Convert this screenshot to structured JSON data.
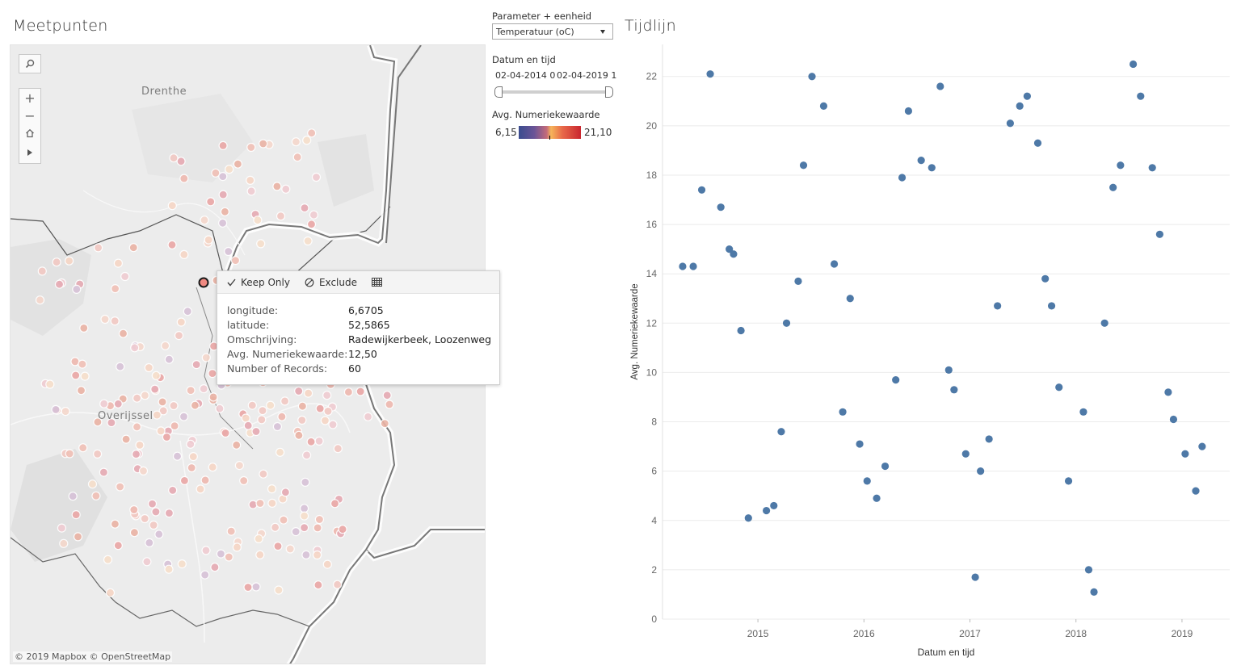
{
  "map": {
    "title": "Meetpunten",
    "labels": {
      "drenthe": "Drenthe",
      "overijssel": "Overijssel"
    },
    "copyright": "© 2019 Mapbox © OpenStreetMap",
    "tooltip": {
      "keep_only": "Keep Only",
      "exclude": "Exclude",
      "rows": [
        {
          "key": "longitude:",
          "value": "6,6705"
        },
        {
          "key": "latitude:",
          "value": "52,5865"
        },
        {
          "key": "Omschrijving:",
          "value": "Radewijkerbeek, Loozenweg"
        },
        {
          "key": "Avg. Numeriekewaarde:",
          "value": "12,50"
        },
        {
          "key": "Number of Records:",
          "value": "60"
        }
      ]
    }
  },
  "controls": {
    "parameter_label": "Parameter + eenheid",
    "parameter_value": "Temperatuur (oC)",
    "date_label": "Datum en tijd",
    "date_start": "02-04-2014 0",
    "date_end": "02-04-2019 1",
    "legend_label": "Avg. Numeriekewaarde",
    "legend_min": "6,15",
    "legend_max": "21,10"
  },
  "chart": {
    "title": "Tijdlijn",
    "color": "#4e79a7"
  },
  "chart_data": {
    "type": "scatter",
    "xlabel": "Datum en tijd",
    "ylabel": "Avg. Numeriekewaarde",
    "xlim": [
      2014.1,
      2019.45
    ],
    "ylim": [
      0,
      23.3
    ],
    "x_ticks": [
      2015,
      2016,
      2017,
      2018,
      2019
    ],
    "y_ticks": [
      0,
      2,
      4,
      6,
      8,
      10,
      12,
      14,
      16,
      18,
      20,
      22
    ],
    "grid": true,
    "points": [
      [
        2014.29,
        14.3
      ],
      [
        2014.39,
        14.3
      ],
      [
        2014.47,
        17.4
      ],
      [
        2014.55,
        22.1
      ],
      [
        2014.65,
        16.7
      ],
      [
        2014.73,
        15.0
      ],
      [
        2014.77,
        14.8
      ],
      [
        2014.84,
        11.7
      ],
      [
        2014.91,
        4.1
      ],
      [
        2015.08,
        4.4
      ],
      [
        2015.15,
        4.6
      ],
      [
        2015.22,
        7.6
      ],
      [
        2015.27,
        12.0
      ],
      [
        2015.38,
        13.7
      ],
      [
        2015.43,
        18.4
      ],
      [
        2015.51,
        22.0
      ],
      [
        2015.62,
        20.8
      ],
      [
        2015.72,
        14.4
      ],
      [
        2015.8,
        8.4
      ],
      [
        2015.87,
        13.0
      ],
      [
        2015.96,
        7.1
      ],
      [
        2016.03,
        5.6
      ],
      [
        2016.12,
        4.9
      ],
      [
        2016.2,
        6.2
      ],
      [
        2016.3,
        9.7
      ],
      [
        2016.36,
        17.9
      ],
      [
        2016.42,
        20.6
      ],
      [
        2016.54,
        18.6
      ],
      [
        2016.64,
        18.3
      ],
      [
        2016.72,
        21.6
      ],
      [
        2016.8,
        10.1
      ],
      [
        2016.85,
        9.3
      ],
      [
        2016.96,
        6.7
      ],
      [
        2017.05,
        1.7
      ],
      [
        2017.1,
        6.0
      ],
      [
        2017.18,
        7.3
      ],
      [
        2017.26,
        12.7
      ],
      [
        2017.38,
        20.1
      ],
      [
        2017.47,
        20.8
      ],
      [
        2017.54,
        21.2
      ],
      [
        2017.64,
        19.3
      ],
      [
        2017.71,
        13.8
      ],
      [
        2017.77,
        12.7
      ],
      [
        2017.84,
        9.4
      ],
      [
        2017.93,
        5.6
      ],
      [
        2018.07,
        8.4
      ],
      [
        2018.12,
        2.0
      ],
      [
        2018.17,
        1.1
      ],
      [
        2018.27,
        12.0
      ],
      [
        2018.35,
        17.5
      ],
      [
        2018.42,
        18.4
      ],
      [
        2018.54,
        22.5
      ],
      [
        2018.61,
        21.2
      ],
      [
        2018.72,
        18.3
      ],
      [
        2018.79,
        15.6
      ],
      [
        2018.87,
        9.2
      ],
      [
        2018.92,
        8.1
      ],
      [
        2019.03,
        6.7
      ],
      [
        2019.13,
        5.2
      ],
      [
        2019.19,
        7.0
      ]
    ]
  }
}
